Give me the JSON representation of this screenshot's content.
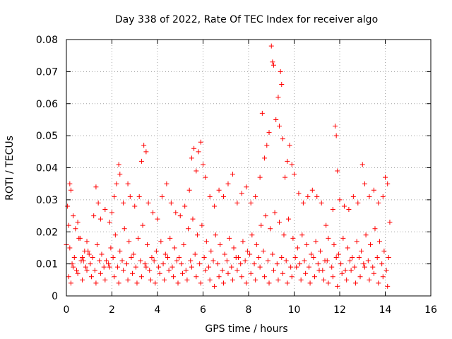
{
  "chart_data": {
    "type": "scatter",
    "title": "Day 338 of 2022, Rate Of TEC Index for receiver algo",
    "xlabel": "GPS time / hours",
    "ylabel": "ROTI / TECUs",
    "xlim": [
      0,
      16
    ],
    "ylim": [
      0,
      0.08
    ],
    "xticks": [
      "0",
      "2",
      "4",
      "6",
      "8",
      "10",
      "12",
      "14",
      "16"
    ],
    "yticks": [
      "0",
      "0.01",
      "0.02",
      "0.03",
      "0.04",
      "0.05",
      "0.06",
      "0.07",
      "0.08"
    ],
    "grid": true,
    "marker": "plus",
    "color": "#ff0000",
    "series": [
      {
        "points": [
          [
            0.0,
            0.016
          ],
          [
            0.05,
            0.028
          ],
          [
            0.1,
            0.022
          ],
          [
            0.15,
            0.035
          ],
          [
            0.2,
            0.033
          ],
          [
            0.3,
            0.025
          ],
          [
            0.4,
            0.021
          ],
          [
            0.5,
            0.023
          ],
          [
            0.6,
            0.018
          ],
          [
            0.7,
            0.012
          ],
          [
            0.8,
            0.014
          ],
          [
            0.9,
            0.017
          ],
          [
            1.0,
            0.013
          ],
          [
            1.2,
            0.025
          ],
          [
            1.3,
            0.034
          ],
          [
            1.4,
            0.029
          ],
          [
            1.5,
            0.024
          ],
          [
            1.7,
            0.027
          ],
          [
            1.9,
            0.023
          ],
          [
            2.0,
            0.026
          ],
          [
            2.1,
            0.031
          ],
          [
            2.2,
            0.035
          ],
          [
            2.3,
            0.041
          ],
          [
            2.35,
            0.038
          ],
          [
            2.5,
            0.029
          ],
          [
            2.7,
            0.035
          ],
          [
            2.8,
            0.031
          ],
          [
            3.0,
            0.028
          ],
          [
            3.2,
            0.031
          ],
          [
            3.3,
            0.042
          ],
          [
            3.4,
            0.047
          ],
          [
            3.5,
            0.045
          ],
          [
            3.6,
            0.029
          ],
          [
            3.8,
            0.026
          ],
          [
            4.0,
            0.024
          ],
          [
            4.2,
            0.031
          ],
          [
            4.4,
            0.035
          ],
          [
            4.6,
            0.029
          ],
          [
            4.8,
            0.026
          ],
          [
            5.0,
            0.025
          ],
          [
            5.2,
            0.028
          ],
          [
            5.4,
            0.033
          ],
          [
            5.5,
            0.043
          ],
          [
            5.6,
            0.046
          ],
          [
            5.7,
            0.039
          ],
          [
            5.8,
            0.045
          ],
          [
            5.9,
            0.048
          ],
          [
            6.0,
            0.041
          ],
          [
            6.1,
            0.037
          ],
          [
            6.3,
            0.031
          ],
          [
            6.5,
            0.028
          ],
          [
            6.7,
            0.033
          ],
          [
            6.9,
            0.031
          ],
          [
            7.1,
            0.035
          ],
          [
            7.3,
            0.038
          ],
          [
            7.5,
            0.029
          ],
          [
            7.7,
            0.032
          ],
          [
            7.9,
            0.034
          ],
          [
            8.1,
            0.029
          ],
          [
            8.3,
            0.031
          ],
          [
            8.5,
            0.037
          ],
          [
            8.6,
            0.057
          ],
          [
            8.7,
            0.043
          ],
          [
            8.8,
            0.047
          ],
          [
            8.9,
            0.051
          ],
          [
            9.0,
            0.078
          ],
          [
            9.05,
            0.073
          ],
          [
            9.1,
            0.072
          ],
          [
            9.2,
            0.055
          ],
          [
            9.3,
            0.062
          ],
          [
            9.35,
            0.053
          ],
          [
            9.4,
            0.07
          ],
          [
            9.45,
            0.066
          ],
          [
            9.5,
            0.049
          ],
          [
            9.6,
            0.037
          ],
          [
            9.7,
            0.042
          ],
          [
            9.8,
            0.047
          ],
          [
            9.9,
            0.041
          ],
          [
            10.0,
            0.038
          ],
          [
            10.2,
            0.032
          ],
          [
            10.4,
            0.029
          ],
          [
            10.6,
            0.031
          ],
          [
            10.8,
            0.033
          ],
          [
            11.0,
            0.031
          ],
          [
            11.2,
            0.029
          ],
          [
            11.4,
            0.022
          ],
          [
            11.5,
            0.018
          ],
          [
            11.7,
            0.027
          ],
          [
            11.8,
            0.053
          ],
          [
            11.85,
            0.05
          ],
          [
            11.9,
            0.039
          ],
          [
            12.0,
            0.03
          ],
          [
            12.2,
            0.028
          ],
          [
            12.4,
            0.027
          ],
          [
            12.6,
            0.031
          ],
          [
            12.8,
            0.029
          ],
          [
            13.0,
            0.041
          ],
          [
            13.1,
            0.035
          ],
          [
            13.3,
            0.031
          ],
          [
            13.5,
            0.033
          ],
          [
            13.7,
            0.029
          ],
          [
            13.9,
            0.031
          ],
          [
            14.0,
            0.037
          ],
          [
            14.1,
            0.035
          ],
          [
            14.2,
            0.023
          ],
          [
            0.1,
            0.006
          ],
          [
            0.2,
            0.004
          ],
          [
            0.3,
            0.009
          ],
          [
            0.5,
            0.007
          ],
          [
            0.7,
            0.005
          ],
          [
            0.9,
            0.008
          ],
          [
            1.1,
            0.006
          ],
          [
            1.3,
            0.004
          ],
          [
            1.5,
            0.007
          ],
          [
            1.7,
            0.005
          ],
          [
            1.9,
            0.009
          ],
          [
            2.1,
            0.006
          ],
          [
            2.3,
            0.004
          ],
          [
            2.5,
            0.008
          ],
          [
            2.7,
            0.005
          ],
          [
            2.9,
            0.007
          ],
          [
            3.1,
            0.004
          ],
          [
            3.3,
            0.006
          ],
          [
            3.5,
            0.009
          ],
          [
            3.7,
            0.005
          ],
          [
            3.9,
            0.004
          ],
          [
            4.1,
            0.007
          ],
          [
            4.3,
            0.005
          ],
          [
            4.5,
            0.008
          ],
          [
            4.7,
            0.006
          ],
          [
            4.9,
            0.004
          ],
          [
            5.1,
            0.007
          ],
          [
            5.3,
            0.005
          ],
          [
            5.5,
            0.009
          ],
          [
            5.7,
            0.006
          ],
          [
            5.9,
            0.004
          ],
          [
            6.1,
            0.008
          ],
          [
            6.3,
            0.005
          ],
          [
            6.5,
            0.003
          ],
          [
            6.7,
            0.006
          ],
          [
            6.9,
            0.004
          ],
          [
            7.1,
            0.007
          ],
          [
            7.3,
            0.005
          ],
          [
            7.5,
            0.008
          ],
          [
            7.7,
            0.006
          ],
          [
            7.9,
            0.004
          ],
          [
            8.1,
            0.007
          ],
          [
            8.3,
            0.005
          ],
          [
            8.5,
            0.009
          ],
          [
            8.7,
            0.006
          ],
          [
            8.9,
            0.004
          ],
          [
            9.1,
            0.008
          ],
          [
            9.3,
            0.005
          ],
          [
            9.5,
            0.007
          ],
          [
            9.7,
            0.004
          ],
          [
            9.9,
            0.006
          ],
          [
            10.1,
            0.009
          ],
          [
            10.3,
            0.005
          ],
          [
            10.5,
            0.007
          ],
          [
            10.7,
            0.004
          ],
          [
            10.9,
            0.006
          ],
          [
            11.1,
            0.008
          ],
          [
            11.3,
            0.005
          ],
          [
            11.5,
            0.004
          ],
          [
            11.7,
            0.006
          ],
          [
            11.9,
            0.003
          ],
          [
            12.1,
            0.007
          ],
          [
            12.3,
            0.005
          ],
          [
            12.5,
            0.008
          ],
          [
            12.7,
            0.004
          ],
          [
            12.9,
            0.006
          ],
          [
            13.1,
            0.009
          ],
          [
            13.3,
            0.005
          ],
          [
            13.5,
            0.007
          ],
          [
            13.7,
            0.004
          ],
          [
            13.9,
            0.006
          ],
          [
            14.1,
            0.003
          ],
          [
            0.15,
            0.015
          ],
          [
            0.35,
            0.012
          ],
          [
            0.55,
            0.018
          ],
          [
            0.75,
            0.011
          ],
          [
            0.95,
            0.014
          ],
          [
            1.15,
            0.012
          ],
          [
            1.35,
            0.016
          ],
          [
            1.55,
            0.013
          ],
          [
            1.75,
            0.011
          ],
          [
            1.95,
            0.015
          ],
          [
            2.15,
            0.019
          ],
          [
            2.35,
            0.014
          ],
          [
            2.55,
            0.021
          ],
          [
            2.75,
            0.017
          ],
          [
            2.95,
            0.013
          ],
          [
            3.15,
            0.018
          ],
          [
            3.35,
            0.022
          ],
          [
            3.55,
            0.016
          ],
          [
            3.75,
            0.012
          ],
          [
            3.95,
            0.014
          ],
          [
            4.15,
            0.017
          ],
          [
            4.35,
            0.013
          ],
          [
            4.55,
            0.018
          ],
          [
            4.75,
            0.015
          ],
          [
            4.95,
            0.012
          ],
          [
            5.15,
            0.016
          ],
          [
            5.35,
            0.021
          ],
          [
            5.55,
            0.024
          ],
          [
            5.75,
            0.019
          ],
          [
            5.95,
            0.022
          ],
          [
            6.15,
            0.017
          ],
          [
            6.35,
            0.014
          ],
          [
            6.55,
            0.019
          ],
          [
            6.75,
            0.016
          ],
          [
            6.95,
            0.013
          ],
          [
            7.15,
            0.018
          ],
          [
            7.35,
            0.015
          ],
          [
            7.55,
            0.012
          ],
          [
            7.75,
            0.017
          ],
          [
            7.95,
            0.014
          ],
          [
            8.15,
            0.019
          ],
          [
            8.35,
            0.016
          ],
          [
            8.55,
            0.022
          ],
          [
            8.75,
            0.025
          ],
          [
            8.95,
            0.021
          ],
          [
            9.15,
            0.026
          ],
          [
            9.35,
            0.023
          ],
          [
            9.55,
            0.019
          ],
          [
            9.75,
            0.024
          ],
          [
            9.95,
            0.018
          ],
          [
            10.15,
            0.015
          ],
          [
            10.35,
            0.019
          ],
          [
            10.55,
            0.016
          ],
          [
            10.75,
            0.013
          ],
          [
            10.95,
            0.017
          ],
          [
            11.15,
            0.014
          ],
          [
            11.35,
            0.011
          ],
          [
            11.75,
            0.016
          ],
          [
            11.95,
            0.013
          ],
          [
            12.15,
            0.018
          ],
          [
            12.35,
            0.015
          ],
          [
            12.55,
            0.012
          ],
          [
            12.75,
            0.017
          ],
          [
            12.95,
            0.014
          ],
          [
            13.15,
            0.019
          ],
          [
            13.35,
            0.016
          ],
          [
            13.55,
            0.021
          ],
          [
            13.75,
            0.017
          ],
          [
            13.95,
            0.014
          ],
          [
            14.15,
            0.012
          ],
          [
            0.25,
            0.01
          ],
          [
            0.45,
            0.008
          ],
          [
            0.65,
            0.011
          ],
          [
            0.85,
            0.009
          ],
          [
            1.05,
            0.01
          ],
          [
            1.25,
            0.008
          ],
          [
            1.45,
            0.011
          ],
          [
            1.65,
            0.009
          ],
          [
            1.85,
            0.01
          ],
          [
            2.05,
            0.012
          ],
          [
            2.25,
            0.009
          ],
          [
            2.45,
            0.011
          ],
          [
            2.65,
            0.01
          ],
          [
            2.85,
            0.012
          ],
          [
            3.05,
            0.009
          ],
          [
            3.25,
            0.011
          ],
          [
            3.45,
            0.01
          ],
          [
            3.65,
            0.008
          ],
          [
            3.85,
            0.011
          ],
          [
            4.05,
            0.009
          ],
          [
            4.25,
            0.01
          ],
          [
            4.45,
            0.012
          ],
          [
            4.65,
            0.009
          ],
          [
            4.85,
            0.011
          ],
          [
            5.05,
            0.01
          ],
          [
            5.25,
            0.008
          ],
          [
            5.45,
            0.011
          ],
          [
            5.65,
            0.013
          ],
          [
            5.85,
            0.01
          ],
          [
            6.05,
            0.012
          ],
          [
            6.25,
            0.009
          ],
          [
            6.45,
            0.011
          ],
          [
            6.65,
            0.01
          ],
          [
            6.85,
            0.008
          ],
          [
            7.05,
            0.011
          ],
          [
            7.25,
            0.009
          ],
          [
            7.45,
            0.012
          ],
          [
            7.65,
            0.01
          ],
          [
            7.85,
            0.011
          ],
          [
            8.05,
            0.013
          ],
          [
            8.25,
            0.01
          ],
          [
            8.45,
            0.012
          ],
          [
            8.65,
            0.014
          ],
          [
            8.85,
            0.011
          ],
          [
            9.05,
            0.013
          ],
          [
            9.25,
            0.01
          ],
          [
            9.45,
            0.012
          ],
          [
            9.65,
            0.011
          ],
          [
            9.85,
            0.009
          ],
          [
            10.05,
            0.012
          ],
          [
            10.25,
            0.01
          ],
          [
            10.45,
            0.011
          ],
          [
            10.65,
            0.009
          ],
          [
            10.85,
            0.012
          ],
          [
            11.05,
            0.01
          ],
          [
            11.25,
            0.008
          ],
          [
            11.45,
            0.011
          ],
          [
            11.65,
            0.009
          ],
          [
            11.85,
            0.012
          ],
          [
            12.05,
            0.01
          ],
          [
            12.25,
            0.008
          ],
          [
            12.45,
            0.011
          ],
          [
            12.65,
            0.009
          ],
          [
            12.85,
            0.012
          ],
          [
            13.05,
            0.01
          ],
          [
            13.25,
            0.011
          ],
          [
            13.45,
            0.009
          ],
          [
            13.65,
            0.012
          ],
          [
            13.85,
            0.01
          ],
          [
            14.05,
            0.008
          ]
        ]
      }
    ]
  }
}
